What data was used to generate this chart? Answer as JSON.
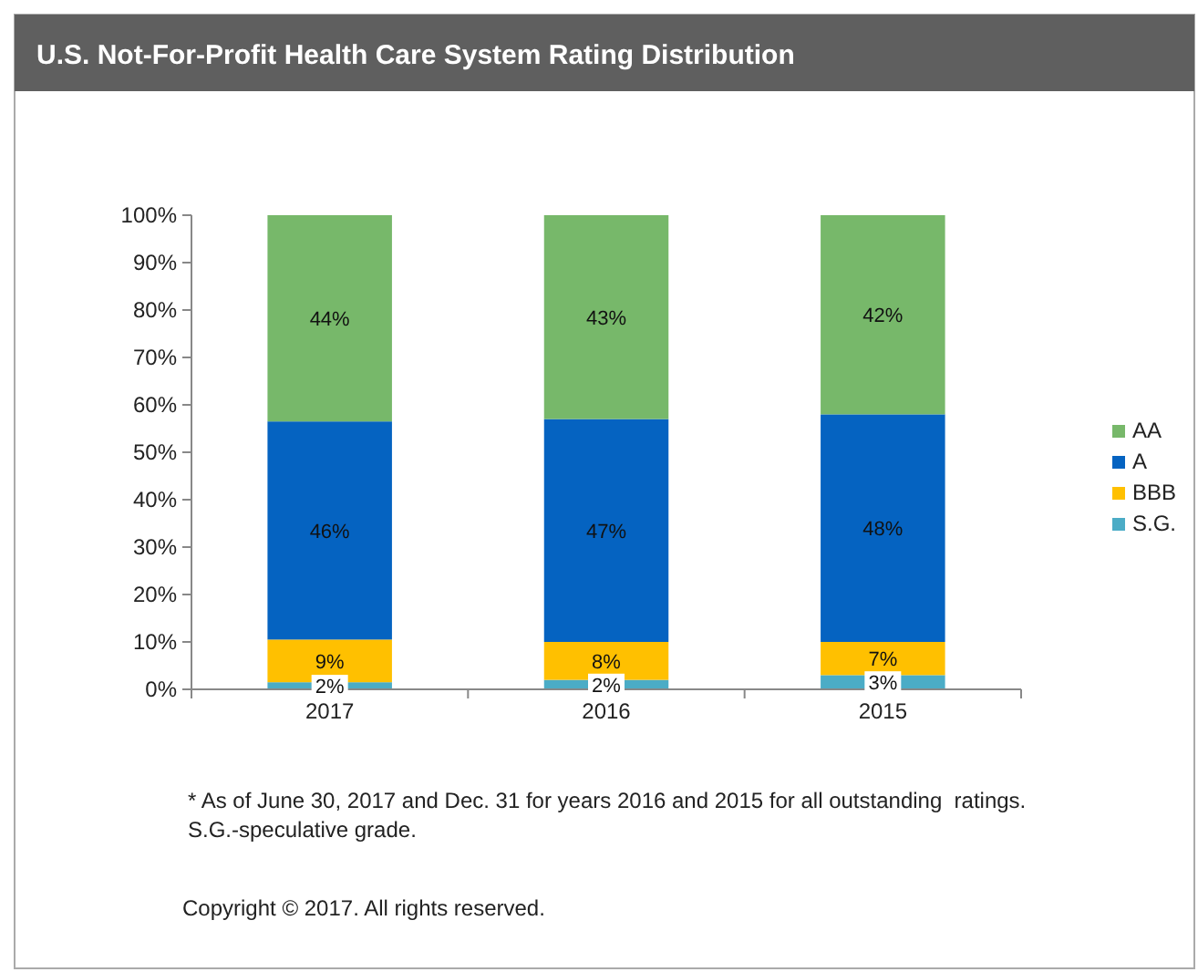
{
  "chart_data": {
    "type": "bar",
    "stacked": true,
    "title": "U.S. Not-For-Profit  Health Care System Rating Distribution",
    "categories": [
      "2017",
      "2016",
      "2015"
    ],
    "series": [
      {
        "name": "S.G.",
        "color": "#4bacc6",
        "values": [
          1.5,
          2,
          3
        ],
        "value_labels": [
          "2%",
          "2%",
          "3%"
        ]
      },
      {
        "name": "BBB",
        "color": "#ffc000",
        "values": [
          9,
          8,
          7
        ],
        "value_labels": [
          "9%",
          "8%",
          "7%"
        ]
      },
      {
        "name": "A",
        "color": "#0563c1",
        "values": [
          46,
          47,
          48
        ],
        "value_labels": [
          "46%",
          "47%",
          "48%"
        ]
      },
      {
        "name": "AA",
        "color": "#77b86a",
        "values": [
          43.5,
          43,
          42
        ],
        "value_labels": [
          "44%",
          "43%",
          "42%"
        ]
      }
    ],
    "ylim": [
      0,
      100
    ],
    "yticks": [
      {
        "value": 0,
        "label": "0%"
      },
      {
        "value": 10,
        "label": "10%"
      },
      {
        "value": 20,
        "label": "20%"
      },
      {
        "value": 30,
        "label": "30%"
      },
      {
        "value": 40,
        "label": "40%"
      },
      {
        "value": 50,
        "label": "50%"
      },
      {
        "value": 60,
        "label": "60%"
      },
      {
        "value": 70,
        "label": "70%"
      },
      {
        "value": 80,
        "label": "80%"
      },
      {
        "value": 90,
        "label": "90%"
      },
      {
        "value": 100,
        "label": "100%"
      }
    ],
    "legend": "right",
    "annotations": [
      "* As of June 30, 2017 and Dec. 31 for years 2016 and 2015 for all outstanding  ratings.",
      "S.G.-speculative grade.",
      "Copyright © 2017. All rights reserved."
    ]
  }
}
